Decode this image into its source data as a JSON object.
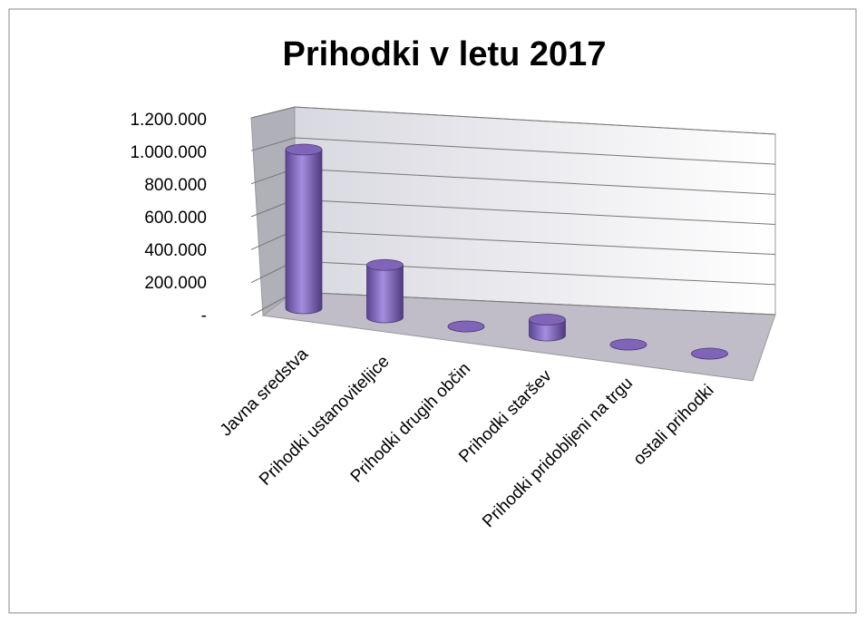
{
  "chart_data": {
    "type": "bar3d",
    "title": "Prihodki v letu 2017",
    "categories": [
      "Javna sredstva",
      "Prihodki ustanoviteljice",
      "Prihodki drugih občin",
      "Prihodki staršev",
      "Prihodki pridobljeni na trgu",
      "ostali prihodki"
    ],
    "values": [
      1000000,
      330000,
      0,
      100000,
      0,
      0
    ],
    "color": "#8064b8",
    "ylim": [
      0,
      1200000
    ],
    "yticks": [
      {
        "value": 0,
        "label": "-"
      },
      {
        "value": 200000,
        "label": "200.000"
      },
      {
        "value": 400000,
        "label": "400.000"
      },
      {
        "value": 600000,
        "label": "600.000"
      },
      {
        "value": 800000,
        "label": "800.000"
      },
      {
        "value": 1000000,
        "label": "1.000.000"
      },
      {
        "value": 1200000,
        "label": "1.200.000"
      }
    ],
    "grid": true
  }
}
